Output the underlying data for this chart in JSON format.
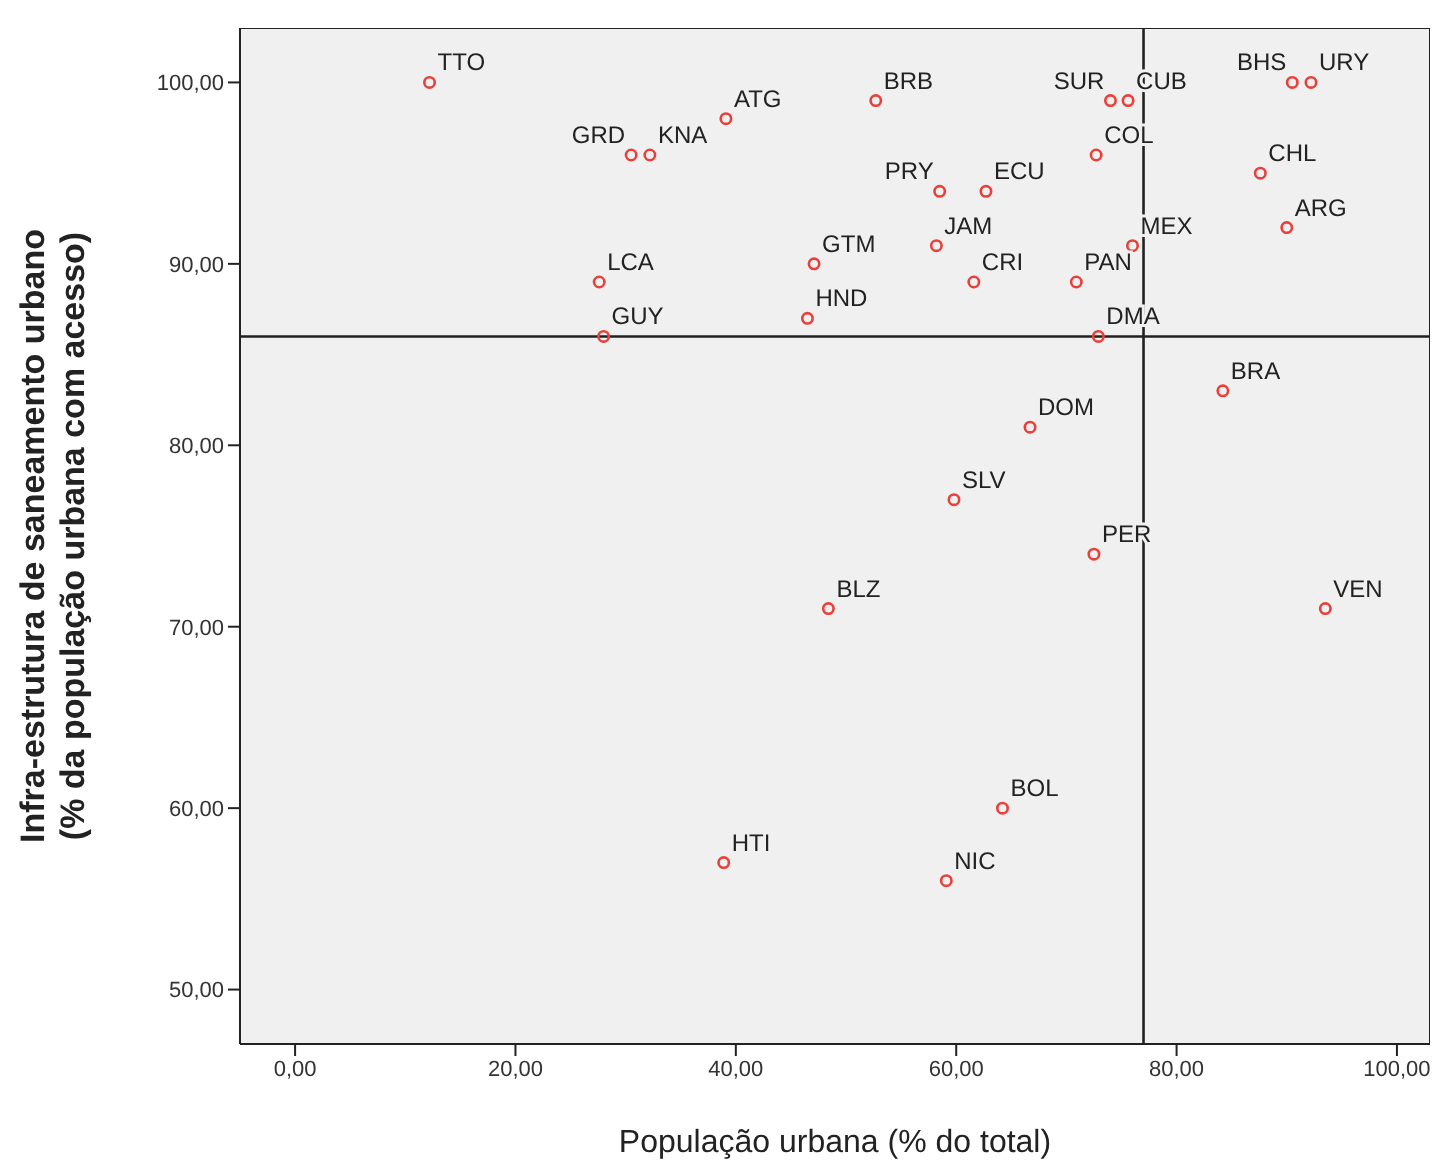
{
  "chart_data": {
    "type": "scatter",
    "xlabel": "População urbana (% do total)",
    "ylabel": "Infra-estrutura de saneamento urbano (% da população urbana com acesso)",
    "xlim": [
      -5,
      103
    ],
    "ylim": [
      47,
      103
    ],
    "xticks": [
      {
        "value": 0,
        "label": "0,00"
      },
      {
        "value": 20,
        "label": "20,00"
      },
      {
        "value": 40,
        "label": "40,00"
      },
      {
        "value": 60,
        "label": "60,00"
      },
      {
        "value": 80,
        "label": "80,00"
      },
      {
        "value": 100,
        "label": "100,00"
      }
    ],
    "yticks": [
      {
        "value": 50,
        "label": "50,00"
      },
      {
        "value": 60,
        "label": "60,00"
      },
      {
        "value": 70,
        "label": "70,00"
      },
      {
        "value": 80,
        "label": "80,00"
      },
      {
        "value": 90,
        "label": "90,00"
      },
      {
        "value": 100,
        "label": "100,00"
      }
    ],
    "grid": false,
    "legend": false,
    "marker": "circle",
    "series": [
      {
        "color": "#e8403a",
        "x": [
          12.2,
          52.7,
          74,
          75.6,
          90.5,
          92.2,
          32.2,
          30.5,
          39.1,
          72.7,
          87.6,
          58.5,
          62.7,
          76,
          58.2,
          47.1,
          90,
          27.6,
          61.6,
          70.9,
          46.5,
          28,
          72.9,
          84.2,
          66.7,
          59.8,
          72.5,
          48.4,
          93.5,
          64.2,
          38.9,
          59.1
        ],
        "values": [
          100,
          99,
          99,
          99,
          100,
          100,
          96,
          96,
          98,
          96,
          95,
          94,
          94,
          91,
          91,
          90,
          92,
          89,
          89,
          89,
          87,
          86,
          86,
          83,
          81,
          77,
          74,
          71,
          71,
          60,
          57,
          56
        ]
      }
    ],
    "annotations": [
      {
        "text": "TTO",
        "x": 12.2,
        "y": 100
      },
      {
        "text": "BRB",
        "x": 52.7,
        "y": 99
      },
      {
        "text": "SUR",
        "x": 74,
        "y": 99
      },
      {
        "text": "CUB",
        "x": 75.6,
        "y": 99
      },
      {
        "text": "BHS",
        "x": 90.5,
        "y": 100
      },
      {
        "text": "URY",
        "x": 92.2,
        "y": 100
      },
      {
        "text": "KNA",
        "x": 32.2,
        "y": 96
      },
      {
        "text": "GRD",
        "x": 30.5,
        "y": 96
      },
      {
        "text": "ATG",
        "x": 39.1,
        "y": 98
      },
      {
        "text": "COL",
        "x": 72.7,
        "y": 96
      },
      {
        "text": "CHL",
        "x": 87.6,
        "y": 95
      },
      {
        "text": "PRY",
        "x": 58.5,
        "y": 94
      },
      {
        "text": "ECU",
        "x": 62.7,
        "y": 94
      },
      {
        "text": "MEX",
        "x": 76,
        "y": 91
      },
      {
        "text": "JAM",
        "x": 58.2,
        "y": 91
      },
      {
        "text": "GTM",
        "x": 47.1,
        "y": 90
      },
      {
        "text": "ARG",
        "x": 90,
        "y": 92
      },
      {
        "text": "LCA",
        "x": 27.6,
        "y": 89
      },
      {
        "text": "CRI",
        "x": 61.6,
        "y": 89
      },
      {
        "text": "PAN",
        "x": 70.9,
        "y": 89
      },
      {
        "text": "HND",
        "x": 46.5,
        "y": 87
      },
      {
        "text": "GUY",
        "x": 28,
        "y": 86
      },
      {
        "text": "DMA",
        "x": 72.9,
        "y": 86
      },
      {
        "text": "BRA",
        "x": 84.2,
        "y": 83
      },
      {
        "text": "DOM",
        "x": 66.7,
        "y": 81
      },
      {
        "text": "SLV",
        "x": 59.8,
        "y": 77
      },
      {
        "text": "PER",
        "x": 72.5,
        "y": 74
      },
      {
        "text": "BLZ",
        "x": 48.4,
        "y": 71
      },
      {
        "text": "VEN",
        "x": 93.5,
        "y": 71
      },
      {
        "text": "BOL",
        "x": 64.2,
        "y": 60
      },
      {
        "text": "HTI",
        "x": 38.9,
        "y": 57
      },
      {
        "text": "NIC",
        "x": 59.1,
        "y": 56
      }
    ],
    "ref_lines": [
      {
        "axis": "x",
        "value": 77
      },
      {
        "axis": "y",
        "value": 86
      }
    ]
  }
}
